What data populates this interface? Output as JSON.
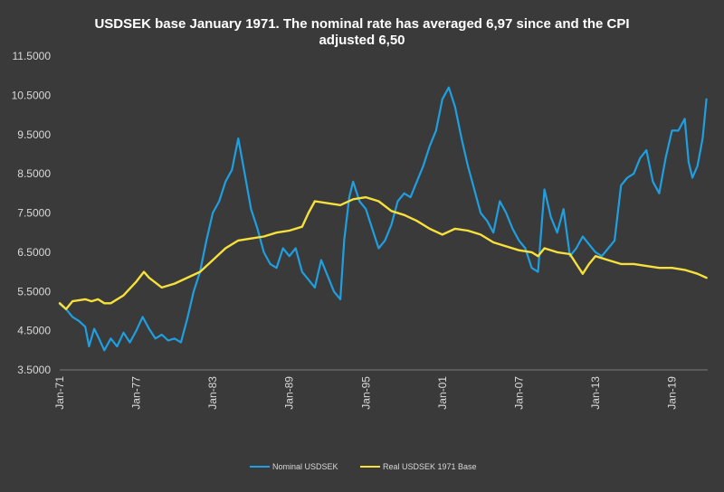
{
  "chart_data": {
    "type": "line",
    "title": "USDSEK base January 1971. The nominal rate has averaged 6,97 since and the CPI adjusted 6,50",
    "title_lines": [
      "USDSEK base January 1971. The nominal rate has averaged 6,97 since and the CPI",
      "adjusted 6,50"
    ],
    "xlabel": "",
    "ylabel": "",
    "ylim": [
      3.5,
      11.5
    ],
    "yticks": [
      3.5,
      4.5,
      5.5,
      6.5,
      7.5,
      8.5,
      9.5,
      10.5,
      11.5
    ],
    "ytick_labels": [
      "3.5000",
      "4.5000",
      "5.5000",
      "6.5000",
      "7.5000",
      "8.5000",
      "9.5000",
      "10.5000",
      "11.5000"
    ],
    "xlim": [
      1971.0,
      2021.8
    ],
    "xticks": [
      1971,
      1977,
      1983,
      1989,
      1995,
      2001,
      2007,
      2013,
      2019
    ],
    "xtick_labels": [
      "Jan-71",
      "Jan-77",
      "Jan-83",
      "Jan-89",
      "Jan-95",
      "Jan-01",
      "Jan-07",
      "Jan-13",
      "Jan-19"
    ],
    "grid": false,
    "legend": "bottom",
    "series": [
      {
        "name": "Nominal USDSEK",
        "color": "#1f9fe0",
        "points": [
          [
            1971.0,
            5.18
          ],
          [
            1971.5,
            5.05
          ],
          [
            1972.0,
            4.85
          ],
          [
            1972.5,
            4.75
          ],
          [
            1973.0,
            4.6
          ],
          [
            1973.3,
            4.1
          ],
          [
            1973.7,
            4.55
          ],
          [
            1974.0,
            4.35
          ],
          [
            1974.5,
            4.0
          ],
          [
            1975.0,
            4.3
          ],
          [
            1975.5,
            4.1
          ],
          [
            1976.0,
            4.45
          ],
          [
            1976.5,
            4.2
          ],
          [
            1977.0,
            4.5
          ],
          [
            1977.5,
            4.85
          ],
          [
            1978.0,
            4.55
          ],
          [
            1978.5,
            4.3
          ],
          [
            1979.0,
            4.4
          ],
          [
            1979.5,
            4.25
          ],
          [
            1980.0,
            4.3
          ],
          [
            1980.5,
            4.2
          ],
          [
            1981.0,
            4.8
          ],
          [
            1981.5,
            5.5
          ],
          [
            1982.0,
            6.0
          ],
          [
            1982.5,
            6.8
          ],
          [
            1983.0,
            7.5
          ],
          [
            1983.5,
            7.8
          ],
          [
            1984.0,
            8.3
          ],
          [
            1984.5,
            8.6
          ],
          [
            1985.0,
            9.4
          ],
          [
            1985.5,
            8.5
          ],
          [
            1986.0,
            7.6
          ],
          [
            1986.5,
            7.1
          ],
          [
            1987.0,
            6.5
          ],
          [
            1987.5,
            6.2
          ],
          [
            1988.0,
            6.1
          ],
          [
            1988.5,
            6.6
          ],
          [
            1989.0,
            6.4
          ],
          [
            1989.5,
            6.6
          ],
          [
            1990.0,
            6.0
          ],
          [
            1990.5,
            5.8
          ],
          [
            1991.0,
            5.6
          ],
          [
            1991.5,
            6.3
          ],
          [
            1992.0,
            5.9
          ],
          [
            1992.5,
            5.5
          ],
          [
            1993.0,
            5.3
          ],
          [
            1993.3,
            6.8
          ],
          [
            1993.7,
            7.9
          ],
          [
            1994.0,
            8.3
          ],
          [
            1994.5,
            7.8
          ],
          [
            1995.0,
            7.6
          ],
          [
            1995.5,
            7.1
          ],
          [
            1996.0,
            6.6
          ],
          [
            1996.5,
            6.8
          ],
          [
            1997.0,
            7.2
          ],
          [
            1997.5,
            7.8
          ],
          [
            1998.0,
            8.0
          ],
          [
            1998.5,
            7.9
          ],
          [
            1999.0,
            8.3
          ],
          [
            1999.5,
            8.7
          ],
          [
            2000.0,
            9.2
          ],
          [
            2000.5,
            9.6
          ],
          [
            2001.0,
            10.4
          ],
          [
            2001.5,
            10.7
          ],
          [
            2002.0,
            10.2
          ],
          [
            2002.5,
            9.4
          ],
          [
            2003.0,
            8.7
          ],
          [
            2003.5,
            8.1
          ],
          [
            2004.0,
            7.5
          ],
          [
            2004.5,
            7.3
          ],
          [
            2005.0,
            7.0
          ],
          [
            2005.5,
            7.8
          ],
          [
            2006.0,
            7.5
          ],
          [
            2006.5,
            7.1
          ],
          [
            2007.0,
            6.8
          ],
          [
            2007.5,
            6.6
          ],
          [
            2008.0,
            6.1
          ],
          [
            2008.5,
            6.0
          ],
          [
            2009.0,
            8.1
          ],
          [
            2009.5,
            7.4
          ],
          [
            2010.0,
            7.0
          ],
          [
            2010.5,
            7.6
          ],
          [
            2011.0,
            6.4
          ],
          [
            2011.5,
            6.6
          ],
          [
            2012.0,
            6.9
          ],
          [
            2012.5,
            6.7
          ],
          [
            2013.0,
            6.5
          ],
          [
            2013.5,
            6.4
          ],
          [
            2014.0,
            6.6
          ],
          [
            2014.5,
            6.8
          ],
          [
            2015.0,
            8.2
          ],
          [
            2015.5,
            8.4
          ],
          [
            2016.0,
            8.5
          ],
          [
            2016.5,
            8.9
          ],
          [
            2017.0,
            9.1
          ],
          [
            2017.5,
            8.3
          ],
          [
            2018.0,
            8.0
          ],
          [
            2018.5,
            8.9
          ],
          [
            2019.0,
            9.6
          ],
          [
            2019.5,
            9.6
          ],
          [
            2020.0,
            9.9
          ],
          [
            2020.3,
            8.8
          ],
          [
            2020.6,
            8.4
          ],
          [
            2021.0,
            8.7
          ],
          [
            2021.4,
            9.4
          ],
          [
            2021.7,
            10.4
          ]
        ]
      },
      {
        "name": "Real USDSEK 1971 Base",
        "color": "#f5e03c",
        "points": [
          [
            1971.0,
            5.2
          ],
          [
            1971.5,
            5.05
          ],
          [
            1972.0,
            5.25
          ],
          [
            1973.0,
            5.3
          ],
          [
            1973.5,
            5.25
          ],
          [
            1974.0,
            5.3
          ],
          [
            1974.5,
            5.2
          ],
          [
            1975.0,
            5.2
          ],
          [
            1976.0,
            5.4
          ],
          [
            1977.0,
            5.75
          ],
          [
            1977.6,
            6.0
          ],
          [
            1978.0,
            5.85
          ],
          [
            1979.0,
            5.6
          ],
          [
            1980.0,
            5.7
          ],
          [
            1981.0,
            5.85
          ],
          [
            1982.0,
            6.0
          ],
          [
            1983.0,
            6.3
          ],
          [
            1984.0,
            6.6
          ],
          [
            1985.0,
            6.8
          ],
          [
            1986.0,
            6.85
          ],
          [
            1987.0,
            6.9
          ],
          [
            1988.0,
            7.0
          ],
          [
            1989.0,
            7.05
          ],
          [
            1990.0,
            7.15
          ],
          [
            1990.5,
            7.5
          ],
          [
            1991.0,
            7.8
          ],
          [
            1992.0,
            7.75
          ],
          [
            1993.0,
            7.7
          ],
          [
            1994.0,
            7.85
          ],
          [
            1995.0,
            7.9
          ],
          [
            1996.0,
            7.8
          ],
          [
            1997.0,
            7.55
          ],
          [
            1998.0,
            7.45
          ],
          [
            1999.0,
            7.3
          ],
          [
            2000.0,
            7.1
          ],
          [
            2001.0,
            6.95
          ],
          [
            2002.0,
            7.1
          ],
          [
            2003.0,
            7.05
          ],
          [
            2004.0,
            6.95
          ],
          [
            2005.0,
            6.75
          ],
          [
            2006.0,
            6.65
          ],
          [
            2007.0,
            6.55
          ],
          [
            2008.0,
            6.5
          ],
          [
            2008.5,
            6.4
          ],
          [
            2009.0,
            6.6
          ],
          [
            2010.0,
            6.5
          ],
          [
            2011.0,
            6.45
          ],
          [
            2011.5,
            6.2
          ],
          [
            2012.0,
            5.95
          ],
          [
            2012.5,
            6.2
          ],
          [
            2013.0,
            6.4
          ],
          [
            2014.0,
            6.3
          ],
          [
            2015.0,
            6.2
          ],
          [
            2016.0,
            6.2
          ],
          [
            2017.0,
            6.15
          ],
          [
            2018.0,
            6.1
          ],
          [
            2019.0,
            6.1
          ],
          [
            2020.0,
            6.05
          ],
          [
            2021.0,
            5.95
          ],
          [
            2021.7,
            5.85
          ]
        ]
      }
    ]
  }
}
